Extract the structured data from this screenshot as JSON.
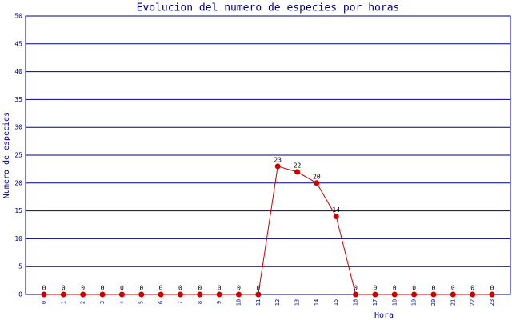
{
  "chart_data": {
    "type": "line",
    "title": "Evolucion del numero de especies por horas",
    "x_label": "Hora",
    "y_label": "Numero de especies",
    "categories": [
      "0",
      "1",
      "2",
      "3",
      "4",
      "5",
      "6",
      "7",
      "8",
      "9",
      "10",
      "11",
      "12",
      "13",
      "14",
      "15",
      "16",
      "17",
      "18",
      "19",
      "20",
      "21",
      "22",
      "23"
    ],
    "series": [
      {
        "name": "especies",
        "color": "#cc0000",
        "values": [
          0,
          0,
          0,
          0,
          0,
          0,
          0,
          0,
          0,
          0,
          0,
          0,
          23,
          22,
          20,
          14,
          0,
          0,
          0,
          0,
          0,
          0,
          0,
          0
        ]
      }
    ],
    "ylim": [
      0,
      50
    ],
    "yticks": [
      0,
      5,
      10,
      15,
      20,
      25,
      30,
      35,
      40,
      45,
      50
    ],
    "grid": true,
    "grid_color": "#000080"
  }
}
